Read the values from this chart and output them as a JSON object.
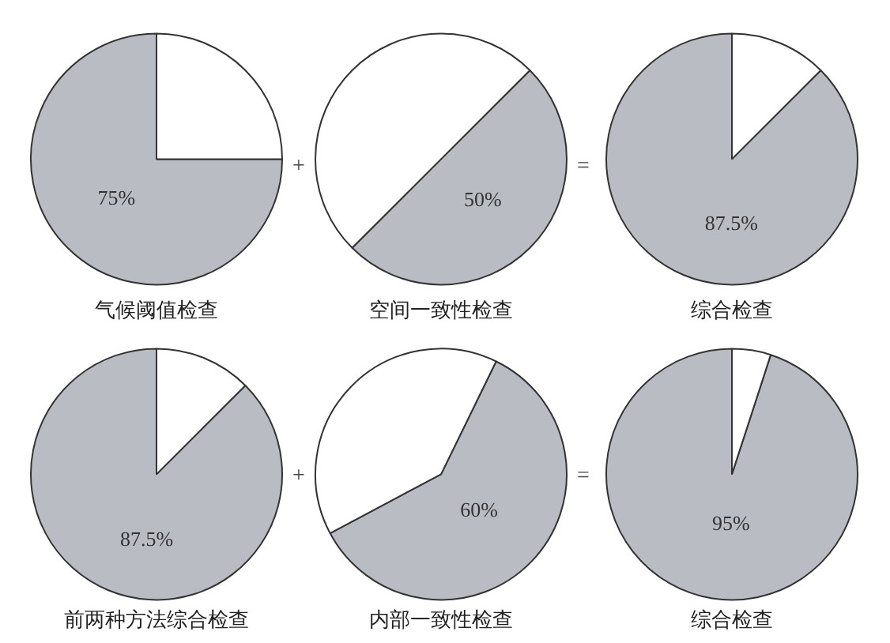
{
  "chart_data": [
    {
      "type": "pie",
      "title": "气候阈值检查",
      "categories": [
        null,
        null
      ],
      "values": [
        75,
        25
      ],
      "colors": [
        "#b9bdc3",
        "#ffffff"
      ],
      "value_labels": [
        "75%",
        null
      ],
      "annotations": [
        "+"
      ]
    },
    {
      "type": "pie",
      "title": "空间一致性检查",
      "categories": [
        null,
        null
      ],
      "values": [
        50,
        50
      ],
      "colors": [
        "#b9bdc3",
        "#ffffff"
      ],
      "value_labels": [
        "50%",
        null
      ],
      "annotations": [
        "="
      ]
    },
    {
      "type": "pie",
      "title": "综合检查",
      "categories": [
        null,
        null
      ],
      "values": [
        87.5,
        12.5
      ],
      "colors": [
        "#b9bdc3",
        "#ffffff"
      ],
      "value_labels": [
        "87.5%",
        null
      ]
    },
    {
      "type": "pie",
      "title": "前两种方法综合检查",
      "categories": [
        null,
        null
      ],
      "values": [
        87.5,
        12.5
      ],
      "colors": [
        "#b9bdc3",
        "#ffffff"
      ],
      "value_labels": [
        "87.5%",
        null
      ],
      "annotations": [
        "+"
      ]
    },
    {
      "type": "pie",
      "title": "内部一致性检查",
      "categories": [
        null,
        null
      ],
      "values": [
        60,
        40
      ],
      "colors": [
        "#b9bdc3",
        "#ffffff"
      ],
      "value_labels": [
        "60%",
        null
      ],
      "annotations": [
        "="
      ]
    },
    {
      "type": "pie",
      "title": "综合检查",
      "categories": [
        null,
        null
      ],
      "values": [
        95,
        5
      ],
      "colors": [
        "#b9bdc3",
        "#ffffff"
      ],
      "value_labels": [
        "95%",
        null
      ]
    }
  ]
}
